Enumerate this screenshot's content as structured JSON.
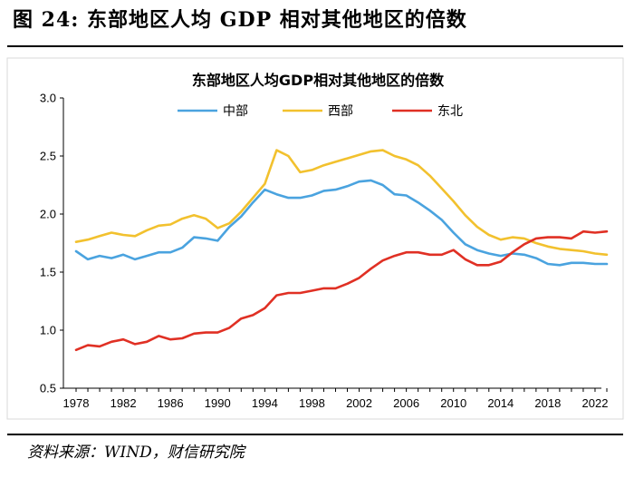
{
  "figure": {
    "title": "图 24:  东部地区人均 GDP 相对其他地区的倍数",
    "source": "资料来源：WIND，财信研究院"
  },
  "chart_data": {
    "type": "line",
    "title": "东部地区人均GDP相对其他地区的倍数",
    "xlabel": "",
    "ylabel": "",
    "xlim": [
      1978,
      2023
    ],
    "ylim": [
      0.5,
      3.0
    ],
    "yticks": [
      0.5,
      1.0,
      1.5,
      2.0,
      2.5,
      3.0
    ],
    "ytick_labels": [
      "0.5",
      "1.0",
      "1.5",
      "2.0",
      "2.5",
      "3.0"
    ],
    "xticks": [
      1978,
      1982,
      1986,
      1990,
      1994,
      1998,
      2002,
      2006,
      2010,
      2014,
      2018,
      2022
    ],
    "xtick_labels": [
      "1978",
      "1982",
      "1986",
      "1990",
      "1994",
      "1998",
      "2002",
      "2006",
      "2010",
      "2014",
      "2018",
      "2022"
    ],
    "legend_position": "top-center",
    "x": [
      1978,
      1979,
      1980,
      1981,
      1982,
      1983,
      1984,
      1985,
      1986,
      1987,
      1988,
      1989,
      1990,
      1991,
      1992,
      1993,
      1994,
      1995,
      1996,
      1997,
      1998,
      1999,
      2000,
      2001,
      2002,
      2003,
      2004,
      2005,
      2006,
      2007,
      2008,
      2009,
      2010,
      2011,
      2012,
      2013,
      2014,
      2015,
      2016,
      2017,
      2018,
      2019,
      2020,
      2021,
      2022,
      2023
    ],
    "series": [
      {
        "name": "中部",
        "color": "#4aa3df",
        "values": [
          1.68,
          1.61,
          1.64,
          1.62,
          1.65,
          1.61,
          1.64,
          1.67,
          1.67,
          1.71,
          1.8,
          1.79,
          1.77,
          1.89,
          1.98,
          2.1,
          2.21,
          2.17,
          2.14,
          2.14,
          2.16,
          2.2,
          2.21,
          2.24,
          2.28,
          2.29,
          2.25,
          2.17,
          2.16,
          2.1,
          2.03,
          1.95,
          1.84,
          1.74,
          1.69,
          1.66,
          1.64,
          1.66,
          1.65,
          1.62,
          1.57,
          1.56,
          1.58,
          1.58,
          1.57,
          1.57
        ]
      },
      {
        "name": "西部",
        "color": "#f2c12e",
        "values": [
          1.76,
          1.78,
          1.81,
          1.84,
          1.82,
          1.81,
          1.86,
          1.9,
          1.91,
          1.96,
          1.99,
          1.96,
          1.88,
          1.92,
          2.02,
          2.14,
          2.26,
          2.55,
          2.5,
          2.36,
          2.38,
          2.42,
          2.45,
          2.48,
          2.51,
          2.54,
          2.55,
          2.5,
          2.47,
          2.42,
          2.33,
          2.22,
          2.11,
          1.99,
          1.89,
          1.82,
          1.78,
          1.8,
          1.79,
          1.75,
          1.72,
          1.7,
          1.69,
          1.68,
          1.66,
          1.65
        ]
      },
      {
        "name": "东北",
        "color": "#e03024",
        "values": [
          0.83,
          0.87,
          0.86,
          0.9,
          0.92,
          0.88,
          0.9,
          0.95,
          0.92,
          0.93,
          0.97,
          0.98,
          0.98,
          1.02,
          1.1,
          1.13,
          1.19,
          1.3,
          1.32,
          1.32,
          1.34,
          1.36,
          1.36,
          1.4,
          1.45,
          1.53,
          1.6,
          1.64,
          1.67,
          1.67,
          1.65,
          1.65,
          1.69,
          1.61,
          1.56,
          1.56,
          1.59,
          1.67,
          1.74,
          1.79,
          1.8,
          1.8,
          1.79,
          1.85,
          1.84,
          1.85
        ]
      }
    ]
  }
}
